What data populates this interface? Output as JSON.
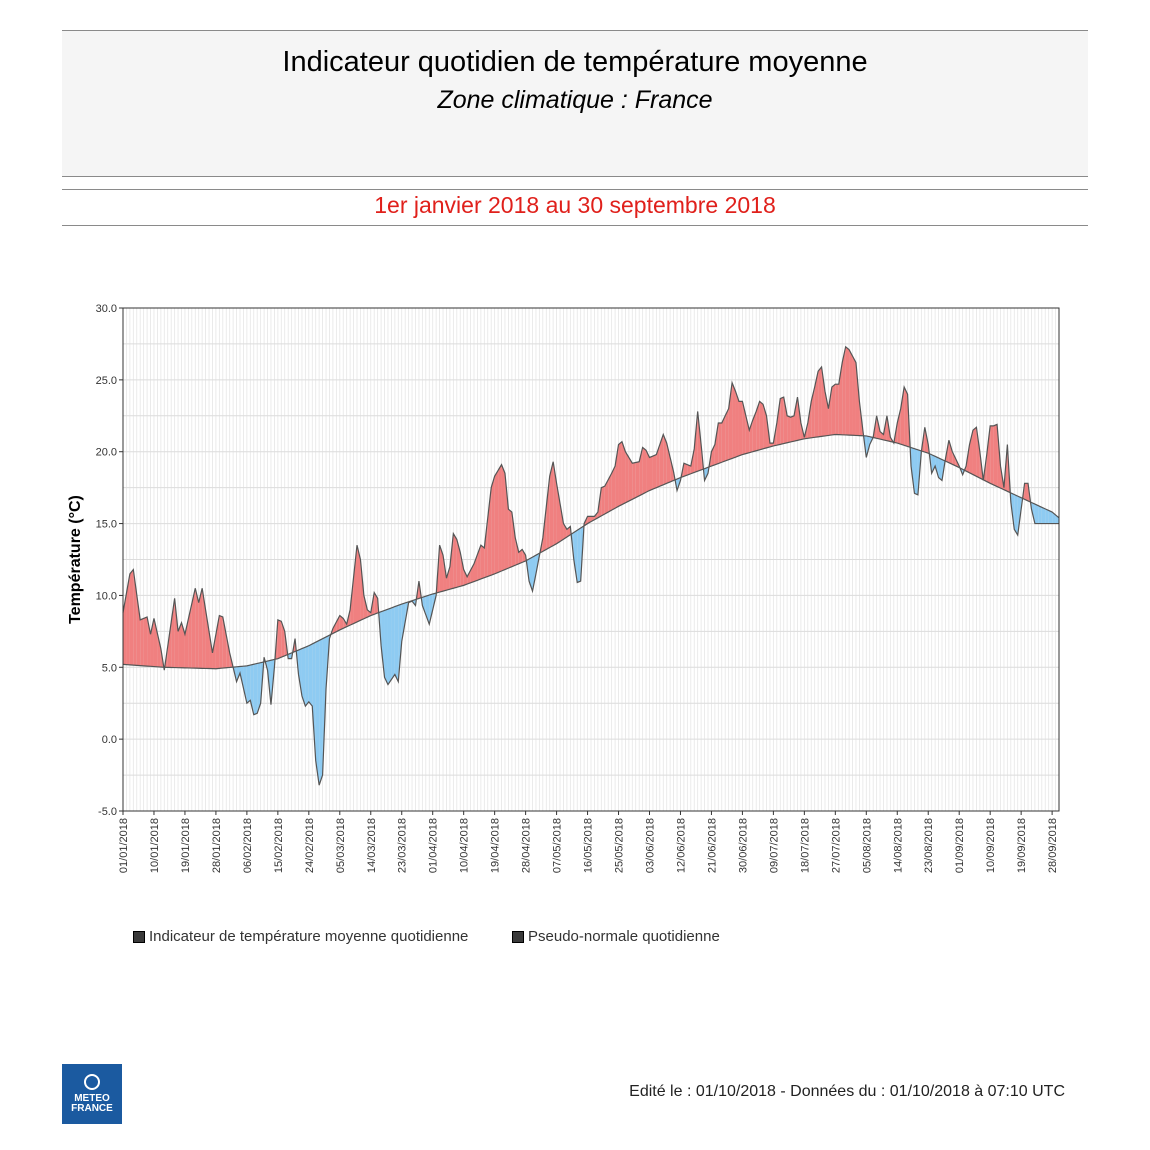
{
  "header": {
    "title": "Indicateur quotidien de température moyenne",
    "subtitle": "Zone climatique : France",
    "period": "1er janvier 2018 au 30 septembre 2018"
  },
  "colors": {
    "above": "#f08080",
    "below": "#8ecbf2",
    "line": "#555555",
    "period": "#e0201b"
  },
  "chart_data": {
    "type": "area",
    "title": "",
    "xlabel": "",
    "ylabel": "Température (°C)",
    "ylim": [
      -5,
      30
    ],
    "yticks": [
      -5,
      0,
      5,
      10,
      15,
      20,
      25,
      30
    ],
    "ytick_labels": [
      "-5.0",
      "0.0",
      "5.0",
      "10.0",
      "15.0",
      "20.0",
      "25.0",
      "30.0"
    ],
    "xtick_labels": [
      "01/01/2018",
      "10/01/2018",
      "19/01/2018",
      "28/01/2018",
      "06/02/2018",
      "15/02/2018",
      "24/02/2018",
      "05/03/2018",
      "14/03/2018",
      "23/03/2018",
      "01/04/2018",
      "10/04/2018",
      "19/04/2018",
      "28/04/2018",
      "07/05/2018",
      "16/05/2018",
      "25/05/2018",
      "03/06/2018",
      "12/06/2018",
      "21/06/2018",
      "30/06/2018",
      "09/07/2018",
      "18/07/2018",
      "27/07/2018",
      "05/08/2018",
      "14/08/2018",
      "23/08/2018",
      "01/09/2018",
      "10/09/2018",
      "19/09/2018",
      "28/09/2018"
    ],
    "x_start": "01/01/2018",
    "x_end": "30/09/2018",
    "grid": true,
    "series": [
      {
        "name": "Indicateur de température moyenne quotidienne",
        "anchors": [
          [
            "01/01/2018",
            8.8
          ],
          [
            "03/01/2018",
            11.5
          ],
          [
            "04/01/2018",
            11.8
          ],
          [
            "06/01/2018",
            8.3
          ],
          [
            "08/01/2018",
            8.5
          ],
          [
            "09/01/2018",
            7.3
          ],
          [
            "10/01/2018",
            8.4
          ],
          [
            "12/01/2018",
            6.3
          ],
          [
            "13/01/2018",
            4.8
          ],
          [
            "16/01/2018",
            9.8
          ],
          [
            "17/01/2018",
            7.5
          ],
          [
            "18/01/2018",
            8.1
          ],
          [
            "19/01/2018",
            7.3
          ],
          [
            "22/01/2018",
            10.5
          ],
          [
            "23/01/2018",
            9.5
          ],
          [
            "24/01/2018",
            10.5
          ],
          [
            "27/01/2018",
            6.0
          ],
          [
            "29/01/2018",
            8.6
          ],
          [
            "30/01/2018",
            8.5
          ],
          [
            "01/02/2018",
            6.0
          ],
          [
            "03/02/2018",
            4.0
          ],
          [
            "04/02/2018",
            4.6
          ],
          [
            "06/02/2018",
            2.5
          ],
          [
            "07/02/2018",
            2.7
          ],
          [
            "08/02/2018",
            1.7
          ],
          [
            "09/02/2018",
            1.8
          ],
          [
            "10/02/2018",
            2.5
          ],
          [
            "11/02/2018",
            5.7
          ],
          [
            "12/02/2018",
            4.8
          ],
          [
            "13/02/2018",
            2.4
          ],
          [
            "14/02/2018",
            5.0
          ],
          [
            "15/02/2018",
            8.3
          ],
          [
            "16/02/2018",
            8.2
          ],
          [
            "17/02/2018",
            7.5
          ],
          [
            "18/02/2018",
            5.6
          ],
          [
            "19/02/2018",
            5.6
          ],
          [
            "20/02/2018",
            7.0
          ],
          [
            "21/02/2018",
            4.5
          ],
          [
            "22/02/2018",
            3.0
          ],
          [
            "23/02/2018",
            2.3
          ],
          [
            "24/02/2018",
            2.6
          ],
          [
            "25/02/2018",
            2.3
          ],
          [
            "26/02/2018",
            -1.5
          ],
          [
            "27/02/2018",
            -3.2
          ],
          [
            "28/02/2018",
            -2.5
          ],
          [
            "01/03/2018",
            3.5
          ],
          [
            "02/03/2018",
            7.0
          ],
          [
            "03/03/2018",
            7.7
          ],
          [
            "05/03/2018",
            8.6
          ],
          [
            "06/03/2018",
            8.4
          ],
          [
            "07/03/2018",
            8.0
          ],
          [
            "08/03/2018",
            9.0
          ],
          [
            "10/03/2018",
            13.5
          ],
          [
            "11/03/2018",
            12.5
          ],
          [
            "12/03/2018",
            10.0
          ],
          [
            "13/03/2018",
            9.0
          ],
          [
            "14/03/2018",
            8.8
          ],
          [
            "15/03/2018",
            10.2
          ],
          [
            "16/03/2018",
            9.8
          ],
          [
            "17/03/2018",
            6.5
          ],
          [
            "18/03/2018",
            4.3
          ],
          [
            "19/03/2018",
            3.8
          ],
          [
            "21/03/2018",
            4.5
          ],
          [
            "22/03/2018",
            4.0
          ],
          [
            "23/03/2018",
            6.8
          ],
          [
            "25/03/2018",
            9.5
          ],
          [
            "26/03/2018",
            9.6
          ],
          [
            "27/03/2018",
            9.3
          ],
          [
            "28/03/2018",
            11.0
          ],
          [
            "29/03/2018",
            9.3
          ],
          [
            "31/03/2018",
            8.0
          ],
          [
            "02/04/2018",
            10.0
          ],
          [
            "03/04/2018",
            13.5
          ],
          [
            "04/04/2018",
            12.8
          ],
          [
            "05/04/2018",
            11.2
          ],
          [
            "06/04/2018",
            12.0
          ],
          [
            "07/04/2018",
            14.3
          ],
          [
            "08/04/2018",
            13.9
          ],
          [
            "09/04/2018",
            13.0
          ],
          [
            "10/04/2018",
            11.8
          ],
          [
            "11/04/2018",
            11.3
          ],
          [
            "13/04/2018",
            12.2
          ],
          [
            "15/04/2018",
            13.5
          ],
          [
            "16/04/2018",
            13.3
          ],
          [
            "18/04/2018",
            17.5
          ],
          [
            "19/04/2018",
            18.3
          ],
          [
            "20/04/2018",
            18.7
          ],
          [
            "21/04/2018",
            19.1
          ],
          [
            "22/04/2018",
            18.5
          ],
          [
            "23/04/2018",
            16.0
          ],
          [
            "24/04/2018",
            15.8
          ],
          [
            "25/04/2018",
            14.0
          ],
          [
            "26/04/2018",
            13.0
          ],
          [
            "27/04/2018",
            13.2
          ],
          [
            "28/04/2018",
            12.8
          ],
          [
            "29/04/2018",
            11.0
          ],
          [
            "30/04/2018",
            10.3
          ],
          [
            "01/05/2018",
            11.5
          ],
          [
            "03/05/2018",
            14.0
          ],
          [
            "05/05/2018",
            18.3
          ],
          [
            "06/05/2018",
            19.3
          ],
          [
            "07/05/2018",
            17.8
          ],
          [
            "09/05/2018",
            15.0
          ],
          [
            "10/05/2018",
            14.6
          ],
          [
            "11/05/2018",
            14.8
          ],
          [
            "12/05/2018",
            12.5
          ],
          [
            "13/05/2018",
            10.9
          ],
          [
            "14/05/2018",
            11.0
          ],
          [
            "15/05/2018",
            15.0
          ],
          [
            "16/05/2018",
            15.5
          ],
          [
            "18/05/2018",
            15.5
          ],
          [
            "19/05/2018",
            15.8
          ],
          [
            "20/05/2018",
            17.5
          ],
          [
            "21/05/2018",
            17.6
          ],
          [
            "23/05/2018",
            18.5
          ],
          [
            "24/05/2018",
            19.0
          ],
          [
            "25/05/2018",
            20.5
          ],
          [
            "26/05/2018",
            20.7
          ],
          [
            "27/05/2018",
            20.0
          ],
          [
            "29/05/2018",
            19.2
          ],
          [
            "31/05/2018",
            19.3
          ],
          [
            "01/06/2018",
            20.3
          ],
          [
            "02/06/2018",
            20.1
          ],
          [
            "03/06/2018",
            19.6
          ],
          [
            "05/06/2018",
            19.8
          ],
          [
            "07/06/2018",
            21.2
          ],
          [
            "08/06/2018",
            20.6
          ],
          [
            "10/06/2018",
            18.6
          ],
          [
            "11/06/2018",
            17.3
          ],
          [
            "12/06/2018",
            18.0
          ],
          [
            "13/06/2018",
            19.2
          ],
          [
            "14/06/2018",
            19.1
          ],
          [
            "15/06/2018",
            19.0
          ],
          [
            "16/06/2018",
            20.2
          ],
          [
            "17/06/2018",
            22.8
          ],
          [
            "18/06/2018",
            20.5
          ],
          [
            "19/06/2018",
            18.0
          ],
          [
            "20/06/2018",
            18.5
          ],
          [
            "21/06/2018",
            20.0
          ],
          [
            "22/06/2018",
            20.5
          ],
          [
            "23/06/2018",
            22.0
          ],
          [
            "24/06/2018",
            22.0
          ],
          [
            "26/06/2018",
            23.0
          ],
          [
            "27/06/2018",
            24.8
          ],
          [
            "28/06/2018",
            24.2
          ],
          [
            "29/06/2018",
            23.5
          ],
          [
            "30/06/2018",
            23.5
          ],
          [
            "02/07/2018",
            21.5
          ],
          [
            "03/07/2018",
            22.2
          ],
          [
            "04/07/2018",
            22.8
          ],
          [
            "05/07/2018",
            23.5
          ],
          [
            "06/07/2018",
            23.3
          ],
          [
            "07/07/2018",
            22.5
          ],
          [
            "08/07/2018",
            20.6
          ],
          [
            "09/07/2018",
            20.6
          ],
          [
            "10/07/2018",
            22.0
          ],
          [
            "11/07/2018",
            23.7
          ],
          [
            "12/07/2018",
            23.8
          ],
          [
            "13/07/2018",
            22.5
          ],
          [
            "14/07/2018",
            22.4
          ],
          [
            "15/07/2018",
            22.5
          ],
          [
            "16/07/2018",
            23.8
          ],
          [
            "17/07/2018",
            22.0
          ],
          [
            "18/07/2018",
            21.0
          ],
          [
            "19/07/2018",
            22.0
          ],
          [
            "20/07/2018",
            23.5
          ],
          [
            "21/07/2018",
            24.5
          ],
          [
            "22/07/2018",
            25.6
          ],
          [
            "23/07/2018",
            25.9
          ],
          [
            "24/07/2018",
            24.2
          ],
          [
            "25/07/2018",
            23.0
          ],
          [
            "26/07/2018",
            24.5
          ],
          [
            "27/07/2018",
            24.7
          ],
          [
            "28/07/2018",
            24.7
          ],
          [
            "29/07/2018",
            26.2
          ],
          [
            "30/07/2018",
            27.3
          ],
          [
            "31/07/2018",
            27.1
          ],
          [
            "02/08/2018",
            26.2
          ],
          [
            "03/08/2018",
            23.5
          ],
          [
            "04/08/2018",
            21.5
          ],
          [
            "05/08/2018",
            19.6
          ],
          [
            "06/08/2018",
            20.5
          ],
          [
            "07/08/2018",
            21.0
          ],
          [
            "08/08/2018",
            22.5
          ],
          [
            "09/08/2018",
            21.4
          ],
          [
            "10/08/2018",
            21.2
          ],
          [
            "11/08/2018",
            22.5
          ],
          [
            "12/08/2018",
            21.0
          ],
          [
            "13/08/2018",
            20.6
          ],
          [
            "14/08/2018",
            22.0
          ],
          [
            "15/08/2018",
            23.0
          ],
          [
            "16/08/2018",
            24.5
          ],
          [
            "17/08/2018",
            24.0
          ],
          [
            "18/08/2018",
            19.0
          ],
          [
            "19/08/2018",
            17.1
          ],
          [
            "20/08/2018",
            17.0
          ],
          [
            "21/08/2018",
            20.0
          ],
          [
            "22/08/2018",
            21.7
          ],
          [
            "23/08/2018",
            20.5
          ],
          [
            "24/08/2018",
            18.5
          ],
          [
            "25/08/2018",
            19.0
          ],
          [
            "26/08/2018",
            18.2
          ],
          [
            "27/08/2018",
            18.0
          ],
          [
            "28/08/2018",
            19.5
          ],
          [
            "29/08/2018",
            20.8
          ],
          [
            "30/08/2018",
            20.0
          ],
          [
            "31/08/2018",
            19.5
          ],
          [
            "01/09/2018",
            19.0
          ],
          [
            "02/09/2018",
            18.4
          ],
          [
            "03/09/2018",
            19.0
          ],
          [
            "04/09/2018",
            20.5
          ],
          [
            "05/09/2018",
            21.5
          ],
          [
            "06/09/2018",
            21.7
          ],
          [
            "07/09/2018",
            20.0
          ],
          [
            "08/09/2018",
            18.0
          ],
          [
            "09/09/2018",
            19.8
          ],
          [
            "10/09/2018",
            21.8
          ],
          [
            "11/09/2018",
            21.8
          ],
          [
            "12/09/2018",
            21.9
          ],
          [
            "13/09/2018",
            19.0
          ],
          [
            "14/09/2018",
            17.5
          ],
          [
            "15/09/2018",
            20.5
          ],
          [
            "16/09/2018",
            16.5
          ],
          [
            "17/09/2018",
            14.6
          ],
          [
            "18/09/2018",
            14.2
          ],
          [
            "19/09/2018",
            16.0
          ],
          [
            "20/09/2018",
            17.8
          ],
          [
            "21/09/2018",
            17.8
          ],
          [
            "22/09/2018",
            16.0
          ],
          [
            "23/09/2018",
            15.0
          ]
        ]
      },
      {
        "name": "Pseudo-normale quotidienne",
        "anchors": [
          [
            "01/01/2018",
            5.2
          ],
          [
            "13/01/2018",
            5.0
          ],
          [
            "28/01/2018",
            4.9
          ],
          [
            "06/02/2018",
            5.1
          ],
          [
            "15/02/2018",
            5.6
          ],
          [
            "24/02/2018",
            6.5
          ],
          [
            "05/03/2018",
            7.6
          ],
          [
            "14/03/2018",
            8.6
          ],
          [
            "23/03/2018",
            9.4
          ],
          [
            "01/04/2018",
            10.1
          ],
          [
            "10/04/2018",
            10.7
          ],
          [
            "19/04/2018",
            11.5
          ],
          [
            "28/04/2018",
            12.4
          ],
          [
            "07/05/2018",
            13.6
          ],
          [
            "16/05/2018",
            15.0
          ],
          [
            "25/05/2018",
            16.2
          ],
          [
            "03/06/2018",
            17.3
          ],
          [
            "12/06/2018",
            18.2
          ],
          [
            "21/06/2018",
            19.0
          ],
          [
            "30/06/2018",
            19.8
          ],
          [
            "09/07/2018",
            20.4
          ],
          [
            "18/07/2018",
            20.9
          ],
          [
            "27/07/2018",
            21.2
          ],
          [
            "05/08/2018",
            21.1
          ],
          [
            "14/08/2018",
            20.6
          ],
          [
            "23/08/2018",
            19.9
          ],
          [
            "01/09/2018",
            18.9
          ],
          [
            "10/09/2018",
            17.8
          ],
          [
            "19/09/2018",
            16.8
          ],
          [
            "28/09/2018",
            15.8
          ],
          [
            "30/09/2018",
            15.4
          ]
        ]
      }
    ],
    "legend": [
      "Indicateur de température moyenne quotidienne",
      "Pseudo-normale quotidienne"
    ],
    "legend_position": "bottom"
  },
  "footer": {
    "edited": "Edité le : 01/10/2018 - Données du : 01/10/2018 à 07:10 UTC",
    "logo_line1": "METEO",
    "logo_line2": "FRANCE"
  }
}
